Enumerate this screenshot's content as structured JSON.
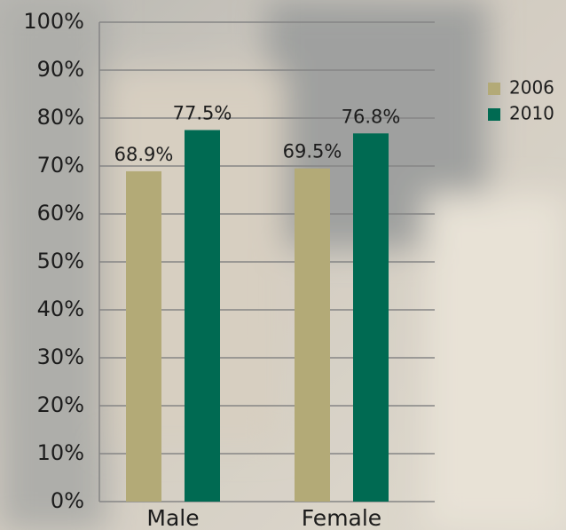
{
  "chart_data": {
    "type": "bar",
    "categories": [
      "Male",
      "Female"
    ],
    "series": [
      {
        "name": "2006",
        "color": "#b3aa77",
        "values": [
          68.9,
          69.5
        ],
        "value_labels": [
          "68.9%",
          "69.5%"
        ]
      },
      {
        "name": "2010",
        "color": "#006a52",
        "values": [
          77.5,
          76.8
        ],
        "value_labels": [
          "77.5%",
          "76.8%"
        ]
      }
    ],
    "ylim": [
      0,
      100
    ],
    "yticks": [
      {
        "value": 0,
        "label": "0%"
      },
      {
        "value": 10,
        "label": "10%"
      },
      {
        "value": 20,
        "label": "20%"
      },
      {
        "value": 30,
        "label": "30%"
      },
      {
        "value": 40,
        "label": "40%"
      },
      {
        "value": 50,
        "label": "50%"
      },
      {
        "value": 60,
        "label": "60%"
      },
      {
        "value": 70,
        "label": "70%"
      },
      {
        "value": 80,
        "label": "80%"
      },
      {
        "value": 90,
        "label": "90%"
      },
      {
        "value": 100,
        "label": "100%"
      }
    ],
    "grid": true,
    "legend": "right"
  }
}
